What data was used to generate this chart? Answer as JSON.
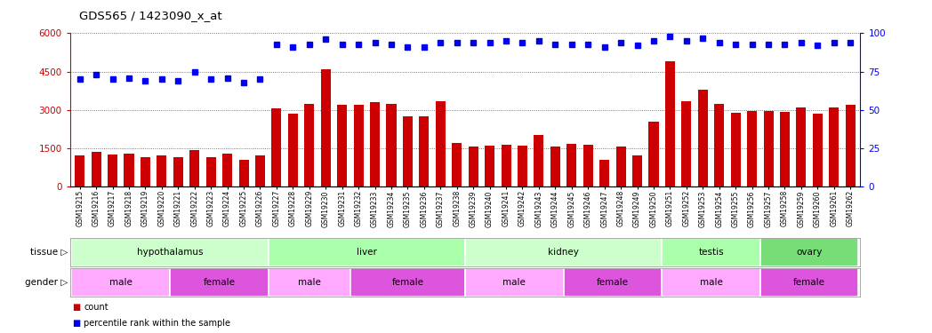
{
  "title": "GDS565 / 1423090_x_at",
  "samples": [
    "GSM19215",
    "GSM19216",
    "GSM19217",
    "GSM19218",
    "GSM19219",
    "GSM19220",
    "GSM19221",
    "GSM19222",
    "GSM19223",
    "GSM19224",
    "GSM19225",
    "GSM19226",
    "GSM19227",
    "GSM19228",
    "GSM19229",
    "GSM19230",
    "GSM19231",
    "GSM19232",
    "GSM19233",
    "GSM19234",
    "GSM19235",
    "GSM19236",
    "GSM19237",
    "GSM19238",
    "GSM19239",
    "GSM19240",
    "GSM19241",
    "GSM19242",
    "GSM19243",
    "GSM19244",
    "GSM19245",
    "GSM19246",
    "GSM19247",
    "GSM19248",
    "GSM19249",
    "GSM19250",
    "GSM19251",
    "GSM19252",
    "GSM19253",
    "GSM19254",
    "GSM19255",
    "GSM19256",
    "GSM19257",
    "GSM19258",
    "GSM19259",
    "GSM19260",
    "GSM19261",
    "GSM19262"
  ],
  "counts": [
    1200,
    1350,
    1250,
    1300,
    1150,
    1200,
    1150,
    1430,
    1150,
    1280,
    1050,
    1200,
    3050,
    2850,
    3250,
    4600,
    3200,
    3200,
    3300,
    3250,
    2750,
    2750,
    3350,
    1700,
    1570,
    1600,
    1620,
    1600,
    2000,
    1550,
    1680,
    1650,
    1050,
    1570,
    1200,
    2550,
    4900,
    3350,
    3800,
    3250,
    2900,
    2950,
    2950,
    2920,
    3100,
    2850,
    3100,
    3200
  ],
  "percentile": [
    70,
    73,
    70,
    71,
    69,
    70,
    69,
    75,
    70,
    71,
    68,
    70,
    93,
    91,
    93,
    96,
    93,
    93,
    94,
    93,
    91,
    91,
    94,
    94,
    94,
    94,
    95,
    94,
    95,
    93,
    93,
    93,
    91,
    94,
    92,
    95,
    98,
    95,
    97,
    94,
    93,
    93,
    93,
    93,
    94,
    92,
    94,
    94
  ],
  "bar_color": "#cc0000",
  "dot_color": "#0000ee",
  "ylim_left": [
    0,
    6000
  ],
  "ylim_right": [
    0,
    100
  ],
  "yticks_left": [
    0,
    1500,
    3000,
    4500,
    6000
  ],
  "yticks_right": [
    0,
    25,
    50,
    75,
    100
  ],
  "tissue_groups": [
    {
      "label": "hypothalamus",
      "start": 0,
      "end": 12,
      "color": "#ccffcc"
    },
    {
      "label": "liver",
      "start": 12,
      "end": 24,
      "color": "#aaffaa"
    },
    {
      "label": "kidney",
      "start": 24,
      "end": 36,
      "color": "#ccffcc"
    },
    {
      "label": "testis",
      "start": 36,
      "end": 42,
      "color": "#aaffaa"
    },
    {
      "label": "ovary",
      "start": 42,
      "end": 48,
      "color": "#77dd77"
    }
  ],
  "gender_groups": [
    {
      "label": "male",
      "start": 0,
      "end": 6,
      "color": "#ffaaff"
    },
    {
      "label": "female",
      "start": 6,
      "end": 12,
      "color": "#dd55dd"
    },
    {
      "label": "male",
      "start": 12,
      "end": 17,
      "color": "#ffaaff"
    },
    {
      "label": "female",
      "start": 17,
      "end": 24,
      "color": "#dd55dd"
    },
    {
      "label": "male",
      "start": 24,
      "end": 30,
      "color": "#ffaaff"
    },
    {
      "label": "female",
      "start": 30,
      "end": 36,
      "color": "#dd55dd"
    },
    {
      "label": "male",
      "start": 36,
      "end": 42,
      "color": "#ffaaff"
    },
    {
      "label": "female",
      "start": 42,
      "end": 48,
      "color": "#dd55dd"
    }
  ],
  "axis_color_left": "#cc0000",
  "axis_color_right": "#0000ee",
  "grid_color": "#555555",
  "bg_color": "#ffffff"
}
